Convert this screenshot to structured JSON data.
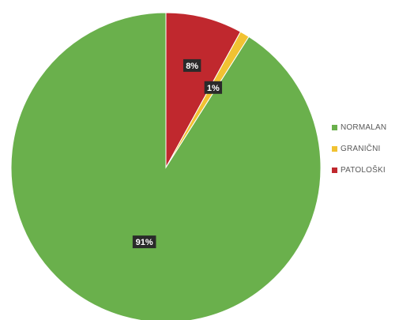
{
  "chart_data": {
    "type": "pie",
    "title": "",
    "categories": [
      "NORMALAN",
      "GRANIČNI",
      "PATOLOŠKI"
    ],
    "values": [
      91,
      1,
      8
    ],
    "data_labels": [
      "91%",
      "1%",
      "8%"
    ],
    "colors": [
      "#6ab04c",
      "#f1c232",
      "#c0282e"
    ],
    "label_background": "#2a2a2a",
    "legend_position": "right",
    "start": "top, clockwise"
  }
}
